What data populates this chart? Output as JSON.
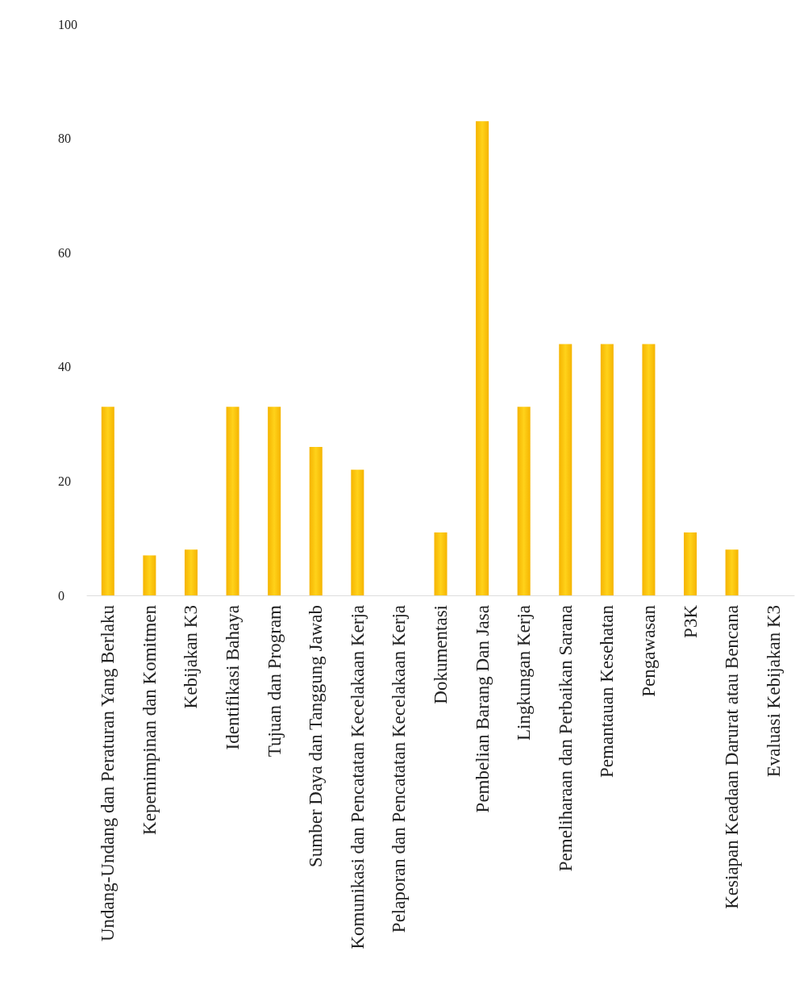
{
  "chart_data": {
    "type": "bar",
    "categories": [
      "Undang-Undang dan Peraturan Yang Berlaku",
      "Kepemimpinan dan Komitmen",
      "Kebijakan K3",
      "Identifikasi Bahaya",
      "Tujuan dan Program",
      "Sumber Daya dan Tanggung Jawab",
      "Komunikasi dan Pencatatan Kecelakaan Kerja",
      "Pelaporan dan Pencatatan Kecelakaan Kerja",
      "Dokumentasi",
      "Pembelian Barang Dan Jasa",
      "Lingkungan Kerja",
      "Pemeliharaan dan Perbaikan Sarana",
      "Pemantauan Kesehatan",
      "Pengawasan",
      "P3K",
      "Kesiapan Keadaan Darurat atau Bencana",
      "Evaluasi Kebijakan K3"
    ],
    "values": [
      33,
      7,
      8,
      33,
      33,
      26,
      22,
      0,
      11,
      83,
      33,
      44,
      44,
      44,
      11,
      8,
      0
    ],
    "color": "#f5b400",
    "ylim": [
      0,
      100
    ],
    "yticks": [
      0,
      20,
      40,
      60,
      80,
      100
    ],
    "grid": false
  }
}
